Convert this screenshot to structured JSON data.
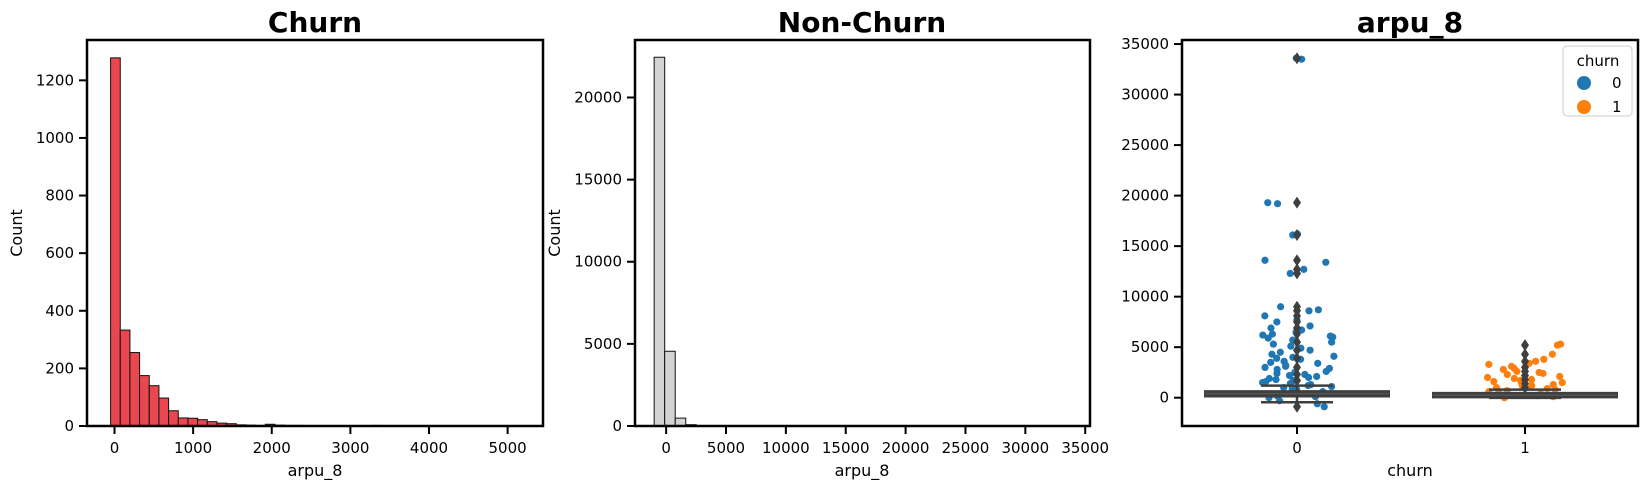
{
  "chart_data": [
    {
      "type": "bar",
      "subtype": "histogram",
      "title": "Churn",
      "xlabel": "arpu_8",
      "ylabel": "Count",
      "xlim": [
        -350,
        5450
      ],
      "ylim": [
        0,
        1340
      ],
      "xticks": [
        0,
        1000,
        2000,
        3000,
        4000,
        5000
      ],
      "yticks": [
        0,
        200,
        400,
        600,
        800,
        1000,
        1200
      ],
      "bin_width": 123,
      "bin_start": -50,
      "values": [
        1278,
        333,
        255,
        175,
        140,
        97,
        53,
        28,
        27,
        22,
        15,
        10,
        8,
        4,
        3,
        2,
        6,
        3,
        2,
        2,
        1,
        1,
        1,
        1,
        1,
        1,
        1,
        2,
        1,
        1,
        1,
        1,
        0,
        1,
        0,
        0,
        0,
        0,
        0,
        0,
        0,
        1
      ],
      "colors": {
        "fill": "#e8474f",
        "edge": "#111111"
      },
      "grid": false
    },
    {
      "type": "bar",
      "subtype": "histogram",
      "title": "Non-Churn",
      "xlabel": "arpu_8",
      "ylabel": "Count",
      "xlim": [
        -2600,
        35400
      ],
      "ylim": [
        0,
        23500
      ],
      "xticks": [
        0,
        5000,
        10000,
        15000,
        20000,
        25000,
        30000,
        35000
      ],
      "yticks": [
        0,
        5000,
        10000,
        15000,
        20000
      ],
      "bin_width": 880,
      "bin_start": -1000,
      "values": [
        22450,
        4550,
        480,
        80,
        20,
        10,
        5,
        3,
        2,
        2,
        1,
        1,
        1,
        1,
        1,
        1,
        1,
        0,
        0,
        0,
        0,
        1,
        0,
        0,
        0,
        0,
        0,
        0,
        0,
        0,
        0,
        0,
        0,
        0,
        0,
        0,
        0,
        0,
        1
      ],
      "colors": {
        "fill": "#d3d3d3",
        "edge": "#111111"
      },
      "grid": false
    },
    {
      "type": "scatter",
      "subtype": "boxplot-with-stripplot",
      "title": "arpu_8",
      "xlabel": "churn",
      "ylabel": "",
      "categories": [
        "0",
        "1"
      ],
      "ylim": [
        -2800,
        35400
      ],
      "yticks": [
        0,
        5000,
        10000,
        15000,
        20000,
        25000,
        30000,
        35000
      ],
      "legend": {
        "title": "churn",
        "placement": "top-right",
        "entries": [
          "0",
          "1"
        ]
      },
      "colors": {
        "0": "#1f77b4",
        "1": "#ff7f0e",
        "box": "#3f3f3f"
      },
      "box": {
        "0": {
          "q1": 120,
          "median": 400,
          "q3": 650,
          "whisker_low": -450,
          "whisker_high": 1200
        },
        "1": {
          "q1": 30,
          "median": 250,
          "q3": 480,
          "whisker_low": -20,
          "whisker_high": 800
        }
      },
      "points": {
        "0": [
          33600,
          33500,
          19300,
          19200,
          16100,
          16200,
          13600,
          13400,
          12700,
          12300,
          9000,
          8700,
          8600,
          8100,
          7700,
          7500,
          7100,
          6900,
          6700,
          6500,
          6300,
          6200,
          6100,
          6000,
          5900,
          5700,
          5500,
          5300,
          5100,
          4900,
          4700,
          4500,
          4300,
          4100,
          4000,
          3900,
          3800,
          3600,
          3500,
          3400,
          3200,
          3100,
          3000,
          2900,
          2800,
          2600,
          2500,
          2400,
          2300,
          2200,
          2100,
          2000,
          1900,
          1800,
          1700,
          1600,
          1500,
          1400,
          1300,
          1200,
          1100,
          1000,
          900,
          800,
          700,
          600,
          500,
          400,
          300,
          200,
          100,
          0,
          -300,
          -600,
          -900
        ],
        "1": [
          5300,
          5200,
          4300,
          3800,
          3600,
          3400,
          3300,
          3100,
          2900,
          2800,
          2600,
          2500,
          2400,
          2300,
          2100,
          2000,
          1900,
          1800,
          1700,
          1600,
          1500,
          1400,
          1300,
          1200,
          1100,
          1000,
          900,
          800,
          700,
          600,
          500,
          400,
          300,
          200,
          100,
          0
        ]
      },
      "outliers": {
        "0": [
          33600,
          19300,
          16100,
          13600,
          12700,
          12300,
          9000,
          8600,
          8100,
          7500,
          6900,
          6300,
          5500,
          4700,
          3900,
          3000,
          2300,
          1700,
          -900
        ],
        "1": [
          5200,
          4300,
          3600,
          3000,
          2600,
          2200,
          1800,
          1400,
          1000
        ]
      },
      "grid": false
    }
  ]
}
